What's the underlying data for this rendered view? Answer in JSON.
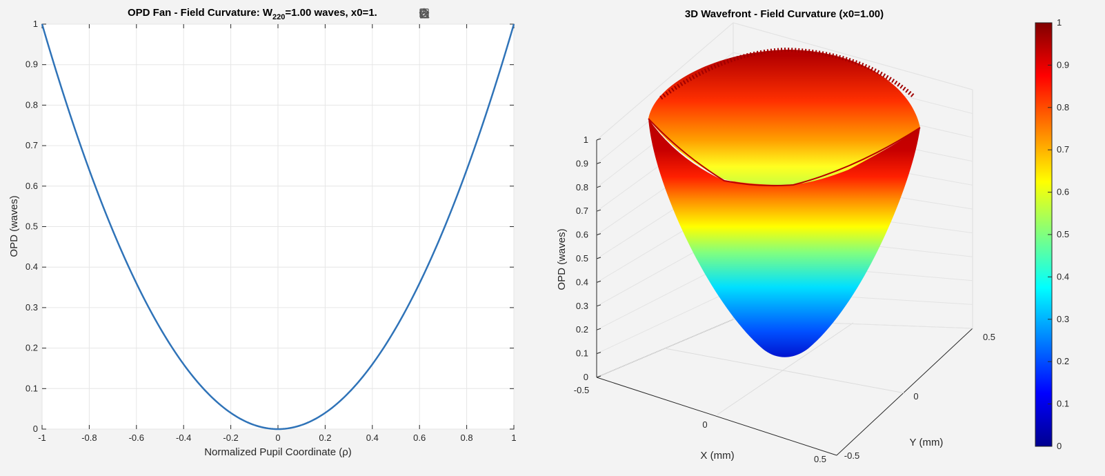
{
  "toolbar": {
    "buttons": [
      {
        "name": "brush-icon"
      },
      {
        "name": "datatip-icon"
      },
      {
        "name": "restore-view-icon"
      },
      {
        "name": "pan-hand-icon"
      },
      {
        "name": "zoom-in-icon"
      },
      {
        "name": "zoom-out-icon"
      },
      {
        "name": "home-icon"
      }
    ]
  },
  "chart_data": [
    {
      "type": "line",
      "title_main": "OPD  Fan  -  Field  Curvature:  W",
      "title_sub": "220",
      "title_rest": "=1.00  waves,  x0=1.",
      "xlabel": "Normalized  Pupil  Coordinate  (ρ)",
      "ylabel": "OPD (waves)",
      "xlim": [
        -1,
        1
      ],
      "ylim": [
        0,
        1
      ],
      "xticks": [
        -1,
        -0.8,
        -0.6,
        -0.4,
        -0.2,
        0,
        0.2,
        0.4,
        0.6,
        0.8,
        1
      ],
      "xtick_labels": [
        "-1",
        "-0.8",
        "-0.6",
        "-0.4",
        "-0.2",
        "0",
        "0.2",
        "0.4",
        "0.6",
        "0.8",
        "1"
      ],
      "yticks": [
        0,
        0.1,
        0.2,
        0.3,
        0.4,
        0.5,
        0.6,
        0.7,
        0.8,
        0.9,
        1
      ],
      "ytick_labels": [
        "0",
        "0.1",
        "0.2",
        "0.3",
        "0.4",
        "0.5",
        "0.6",
        "0.7",
        "0.8",
        "0.9",
        "1"
      ],
      "grid": true,
      "color": "#2f73b8",
      "x": [
        -1,
        -0.9,
        -0.8,
        -0.7,
        -0.6,
        -0.5,
        -0.4,
        -0.3,
        -0.2,
        -0.1,
        0,
        0.1,
        0.2,
        0.3,
        0.4,
        0.5,
        0.6,
        0.7,
        0.8,
        0.9,
        1
      ],
      "y": [
        1,
        0.81,
        0.64,
        0.49,
        0.36,
        0.25,
        0.16,
        0.09,
        0.04,
        0.01,
        0,
        0.01,
        0.04,
        0.09,
        0.16,
        0.25,
        0.36,
        0.49,
        0.64,
        0.81,
        1
      ]
    },
    {
      "type": "surface",
      "title": "3D Wavefront - Field Curvature (x0=1.00)",
      "xlabel": "X (mm)",
      "ylabel": "Y (mm)",
      "zlabel": "OPD (waves)",
      "xlim": [
        -0.5,
        0.5
      ],
      "ylim": [
        -0.5,
        0.5
      ],
      "zlim": [
        0,
        1
      ],
      "xtick_labels": [
        "-0.5",
        "0",
        "0.5"
      ],
      "ytick_labels": [
        "-0.5",
        "0",
        "0.5"
      ],
      "ztick_labels": [
        "0",
        "0.1",
        "0.2",
        "0.3",
        "0.4",
        "0.5",
        "0.6",
        "0.7",
        "0.8",
        "0.9",
        "1"
      ],
      "surface": "OPD = rho^2 over unit pupil",
      "colormap": "jet",
      "colorbar_ticks": [
        "0",
        "0.1",
        "0.2",
        "0.3",
        "0.4",
        "0.5",
        "0.6",
        "0.7",
        "0.8",
        "0.9",
        "1"
      ]
    }
  ]
}
